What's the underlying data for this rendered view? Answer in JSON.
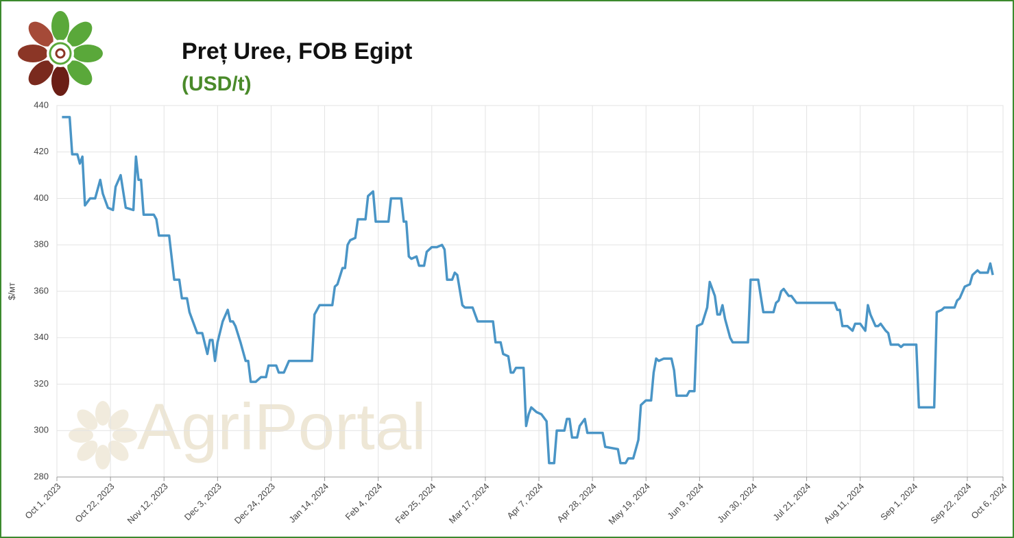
{
  "chart_data": {
    "type": "line",
    "title": "Preț Uree, FOB Egipt",
    "subtitle": "(USD/t)",
    "y_label": "$/мт",
    "watermark": "AgriPortal",
    "grid": true,
    "xlim": [
      "2023-10-01",
      "2024-10-06"
    ],
    "ylim": [
      280,
      440
    ],
    "yticks": [
      280,
      300,
      320,
      340,
      360,
      380,
      400,
      420,
      440
    ],
    "xticks": [
      {
        "value": "2023-10-01",
        "label": "Oct 1, 2023"
      },
      {
        "value": "2023-10-22",
        "label": "Oct 22, 2023"
      },
      {
        "value": "2023-11-12",
        "label": "Nov 12, 2023"
      },
      {
        "value": "2023-12-03",
        "label": "Dec 3, 2023"
      },
      {
        "value": "2023-12-24",
        "label": "Dec 24, 2023"
      },
      {
        "value": "2024-01-14",
        "label": "Jan 14, 2024"
      },
      {
        "value": "2024-02-04",
        "label": "Feb 4, 2024"
      },
      {
        "value": "2024-02-25",
        "label": "Feb 25, 2024"
      },
      {
        "value": "2024-03-17",
        "label": "Mar 17, 2024"
      },
      {
        "value": "2024-04-07",
        "label": "Apr 7, 2024"
      },
      {
        "value": "2024-04-28",
        "label": "Apr 28, 2024"
      },
      {
        "value": "2024-05-19",
        "label": "May 19, 2024"
      },
      {
        "value": "2024-06-09",
        "label": "Jun 9, 2024"
      },
      {
        "value": "2024-06-30",
        "label": "Jun 30, 2024"
      },
      {
        "value": "2024-07-21",
        "label": "Jul 21, 2024"
      },
      {
        "value": "2024-08-11",
        "label": "Aug 11, 2024"
      },
      {
        "value": "2024-09-01",
        "label": "Sep 1, 2024"
      },
      {
        "value": "2024-09-22",
        "label": "Sep 22, 2024"
      },
      {
        "value": "2024-10-06",
        "label": "Oct 6, 2024"
      }
    ],
    "x": [
      "2023-10-03",
      "2023-10-06",
      "2023-10-07",
      "2023-10-09",
      "2023-10-10",
      "2023-10-11",
      "2023-10-12",
      "2023-10-14",
      "2023-10-16",
      "2023-10-18",
      "2023-10-19",
      "2023-10-21",
      "2023-10-23",
      "2023-10-24",
      "2023-10-26",
      "2023-10-28",
      "2023-10-31",
      "2023-11-01",
      "2023-11-02",
      "2023-11-03",
      "2023-11-04",
      "2023-11-08",
      "2023-11-09",
      "2023-11-10",
      "2023-11-14",
      "2023-11-16",
      "2023-11-18",
      "2023-11-19",
      "2023-11-21",
      "2023-11-22",
      "2023-11-23",
      "2023-11-25",
      "2023-11-27",
      "2023-11-29",
      "2023-11-30",
      "2023-12-01",
      "2023-12-02",
      "2023-12-03",
      "2023-12-05",
      "2023-12-07",
      "2023-12-08",
      "2023-12-09",
      "2023-12-10",
      "2023-12-12",
      "2023-12-14",
      "2023-12-15",
      "2023-12-16",
      "2023-12-18",
      "2023-12-20",
      "2023-12-22",
      "2023-12-23",
      "2023-12-26",
      "2023-12-27",
      "2023-12-29",
      "2023-12-31",
      "2024-01-09",
      "2024-01-10",
      "2024-01-12",
      "2024-01-17",
      "2024-01-18",
      "2024-01-19",
      "2024-01-21",
      "2024-01-22",
      "2024-01-23",
      "2024-01-24",
      "2024-01-26",
      "2024-01-27",
      "2024-01-30",
      "2024-01-31",
      "2024-02-02",
      "2024-02-03",
      "2024-02-08",
      "2024-02-09",
      "2024-02-13",
      "2024-02-14",
      "2024-02-15",
      "2024-02-16",
      "2024-02-17",
      "2024-02-19",
      "2024-02-20",
      "2024-02-22",
      "2024-02-23",
      "2024-02-25",
      "2024-02-27",
      "2024-02-29",
      "2024-03-01",
      "2024-03-02",
      "2024-03-04",
      "2024-03-05",
      "2024-03-06",
      "2024-03-08",
      "2024-03-09",
      "2024-03-12",
      "2024-03-13",
      "2024-03-14",
      "2024-03-20",
      "2024-03-21",
      "2024-03-23",
      "2024-03-24",
      "2024-03-26",
      "2024-03-27",
      "2024-03-28",
      "2024-03-29",
      "2024-04-01",
      "2024-04-02",
      "2024-04-03",
      "2024-04-04",
      "2024-04-06",
      "2024-04-08",
      "2024-04-10",
      "2024-04-11",
      "2024-04-13",
      "2024-04-14",
      "2024-04-17",
      "2024-04-18",
      "2024-04-19",
      "2024-04-20",
      "2024-04-22",
      "2024-04-23",
      "2024-04-25",
      "2024-04-26",
      "2024-05-02",
      "2024-05-03",
      "2024-05-08",
      "2024-05-09",
      "2024-05-11",
      "2024-05-12",
      "2024-05-14",
      "2024-05-15",
      "2024-05-16",
      "2024-05-17",
      "2024-05-19",
      "2024-05-21",
      "2024-05-22",
      "2024-05-23",
      "2024-05-24",
      "2024-05-26",
      "2024-05-29",
      "2024-05-30",
      "2024-05-31",
      "2024-06-04",
      "2024-06-05",
      "2024-06-07",
      "2024-06-08",
      "2024-06-10",
      "2024-06-12",
      "2024-06-13",
      "2024-06-15",
      "2024-06-16",
      "2024-06-17",
      "2024-06-18",
      "2024-06-19",
      "2024-06-21",
      "2024-06-22",
      "2024-06-28",
      "2024-06-29",
      "2024-07-02",
      "2024-07-03",
      "2024-07-04",
      "2024-07-08",
      "2024-07-09",
      "2024-07-10",
      "2024-07-11",
      "2024-07-12",
      "2024-07-14",
      "2024-07-15",
      "2024-07-17",
      "2024-08-01",
      "2024-08-02",
      "2024-08-03",
      "2024-08-04",
      "2024-08-06",
      "2024-08-08",
      "2024-08-09",
      "2024-08-11",
      "2024-08-13",
      "2024-08-14",
      "2024-08-15",
      "2024-08-17",
      "2024-08-18",
      "2024-08-19",
      "2024-08-21",
      "2024-08-22",
      "2024-08-23",
      "2024-08-26",
      "2024-08-27",
      "2024-08-28",
      "2024-09-02",
      "2024-09-03",
      "2024-09-09",
      "2024-09-10",
      "2024-09-12",
      "2024-09-13",
      "2024-09-17",
      "2024-09-18",
      "2024-09-19",
      "2024-09-21",
      "2024-09-23",
      "2024-09-24",
      "2024-09-26",
      "2024-09-27",
      "2024-09-30",
      "2024-10-01",
      "2024-10-02"
    ],
    "series": [
      {
        "name": "Uree FOB Egipt",
        "color": "#4a95c6",
        "values": [
          435,
          435,
          419,
          419,
          415,
          418,
          397,
          400,
          400,
          408,
          402,
          396,
          395,
          405,
          410,
          396,
          395,
          418,
          408,
          408,
          393,
          393,
          391,
          384,
          384,
          365,
          365,
          357,
          357,
          351,
          348,
          342,
          342,
          333,
          339,
          339,
          330,
          338,
          347,
          352,
          347,
          347,
          345,
          338,
          330,
          330,
          321,
          321,
          323,
          323,
          328,
          328,
          325,
          325,
          330,
          330,
          350,
          354,
          354,
          362,
          363,
          370,
          370,
          380,
          382,
          383,
          391,
          391,
          401,
          403,
          390,
          390,
          400,
          400,
          390,
          390,
          375,
          374,
          375,
          371,
          371,
          377,
          379,
          379,
          380,
          378,
          365,
          365,
          368,
          367,
          354,
          353,
          353,
          350,
          347,
          347,
          338,
          338,
          333,
          332,
          325,
          325,
          327,
          327,
          302,
          307,
          310,
          308,
          307,
          304,
          286,
          286,
          300,
          300,
          305,
          305,
          297,
          297,
          302,
          305,
          299,
          299,
          293,
          292,
          286,
          286,
          288,
          288,
          292,
          296,
          311,
          313,
          313,
          325,
          331,
          330,
          331,
          331,
          326,
          315,
          315,
          317,
          317,
          345,
          346,
          353,
          364,
          358,
          350,
          350,
          354,
          348,
          340,
          338,
          338,
          365,
          365,
          358,
          351,
          351,
          355,
          356,
          360,
          361,
          358,
          358,
          355,
          355,
          352,
          352,
          345,
          345,
          343,
          346,
          346,
          343,
          354,
          350,
          345,
          345,
          346,
          343,
          342,
          337,
          337,
          336,
          337,
          337,
          310,
          310,
          351,
          352,
          353,
          353,
          356,
          357,
          362,
          363,
          367,
          369,
          368,
          368,
          372,
          367
        ]
      }
    ]
  }
}
